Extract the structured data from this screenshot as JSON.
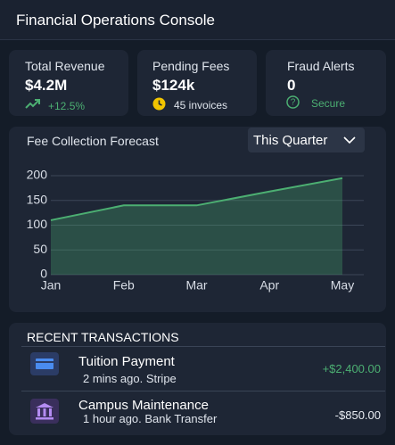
{
  "header": {
    "title": "Financial Operations Console"
  },
  "stats": [
    {
      "label": "Total Revenue",
      "value": "$4.2M",
      "note": "+12.5%"
    },
    {
      "label": "Pending Fees",
      "value": "$124k",
      "note": "45 invoices"
    },
    {
      "label": "Fraud Alerts",
      "value": "0",
      "note": "Secure"
    }
  ],
  "forecast": {
    "title": "Fee Collection Forecast",
    "dropdown": "This Quarter",
    "chart_data": {
      "type": "area",
      "categories": [
        "Jan",
        "Feb",
        "Mar",
        "Apr",
        "May"
      ],
      "values": [
        110,
        140,
        140,
        168,
        195
      ],
      "color": "#4caf72",
      "ylim": [
        0,
        200
      ],
      "yticks": [
        0,
        50,
        100,
        150,
        200
      ],
      "grid": true
    }
  },
  "transactions": {
    "title": "RECENT TRANSACTIONS",
    "items": [
      {
        "name": "Tuition Payment",
        "detail": "2 mins ago. Stripe",
        "amount": "+$2,400.00"
      },
      {
        "name": "Campus Maintenance",
        "detail": "1 hour ago. Bank Transfer",
        "amount": "-$850.00"
      }
    ]
  }
}
